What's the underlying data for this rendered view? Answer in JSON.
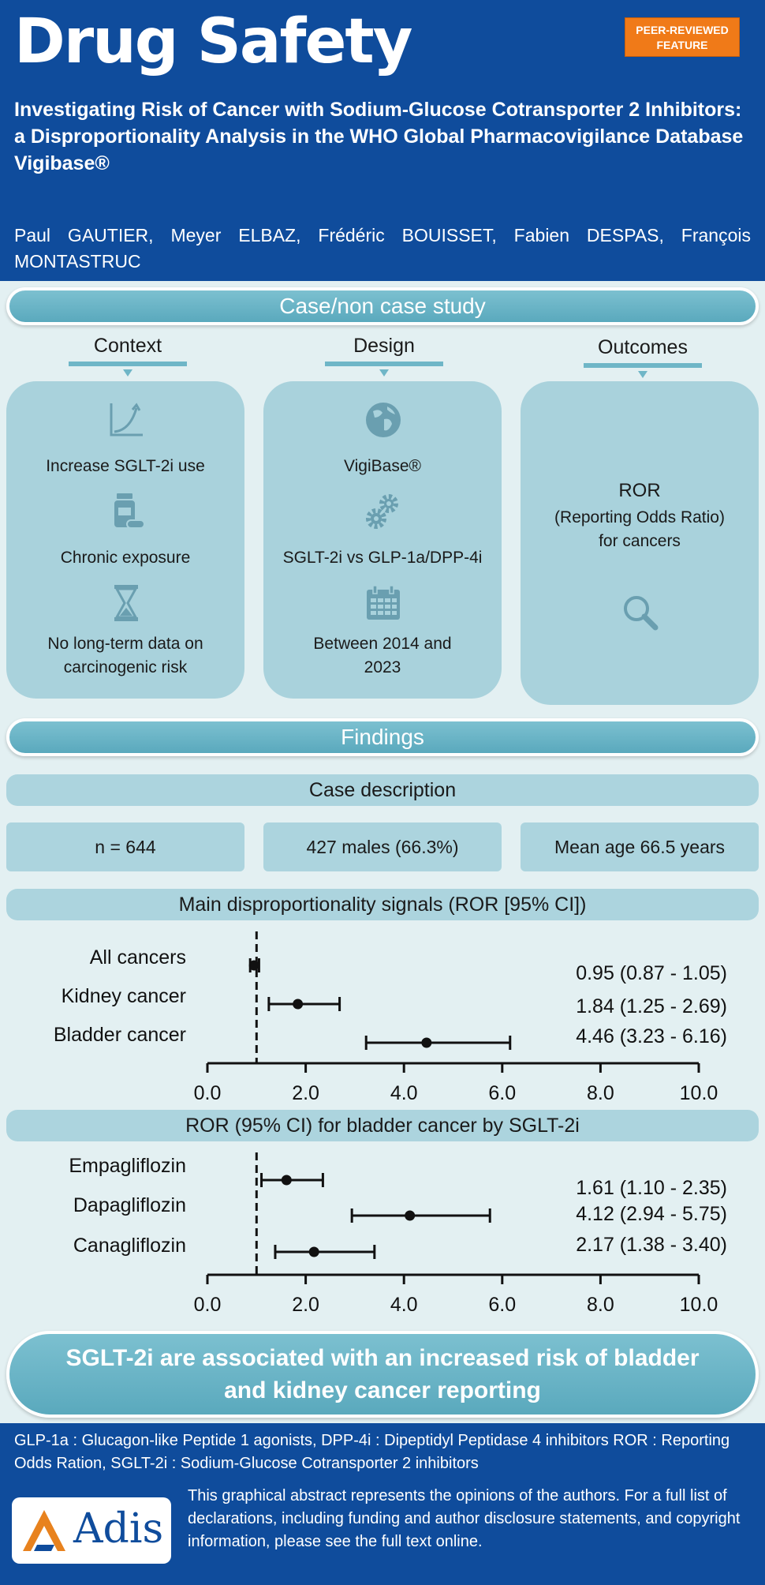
{
  "header": {
    "journal": "Drug Safety",
    "badge_line1": "PEER-REVIEWED",
    "badge_line2": "FEATURE",
    "title": "Investigating Risk of Cancer with Sodium-Glucose Cotransporter 2 Inhibitors: a Disproportionality Analysis in the WHO Global Pharmacovigilance Database Vigibase®",
    "authors": "Paul GAUTIER, Meyer ELBAZ, Frédéric BOUISSET, Fabien DESPAS, François MONTASTRUC"
  },
  "study": {
    "banner": "Case/non case study",
    "columns": [
      {
        "heading": "Context",
        "items": [
          "Increase SGLT-2i use",
          "Chronic exposure",
          "No long-term data on carcinogenic risk"
        ],
        "icons": [
          "chart-curve-icon",
          "pill-bottle-icon",
          "hourglass-icon"
        ]
      },
      {
        "heading": "Design",
        "items": [
          "VigiBase®",
          "SGLT-2i vs GLP-1a/DPP-4i",
          "Between 2014 and 2023"
        ],
        "icons": [
          "globe-icon",
          "gears-icon",
          "calendar-icon"
        ]
      },
      {
        "heading": "Outcomes",
        "items": [
          "ROR",
          "(Reporting Odds Ratio)",
          "for cancers"
        ],
        "icons": [
          "magnifier-icon"
        ]
      }
    ]
  },
  "findings": {
    "banner": "Findings",
    "case_description": "Case description",
    "stats": [
      "n = 644",
      "427 males (66.3%)",
      "Mean age 66.5 years"
    ],
    "signals_title": "Main disproportionality signals (ROR [95% CI])",
    "bladder_title": "ROR (95% CI) for bladder cancer by SGLT-2i"
  },
  "chart_data": [
    {
      "type": "forest",
      "title": "Main disproportionality signals (ROR [95% CI])",
      "reference_line": 1.0,
      "xlim": [
        0,
        10
      ],
      "xticks": [
        "0.0",
        "2.0",
        "4.0",
        "6.0",
        "8.0",
        "10.0"
      ],
      "categories": [
        "All cancers",
        "Kidney cancer",
        "Bladder cancer"
      ],
      "estimate": [
        0.95,
        1.84,
        4.46
      ],
      "lower": [
        0.87,
        1.25,
        3.23
      ],
      "upper": [
        1.05,
        2.69,
        6.16
      ],
      "labels": [
        "0.95 (0.87 - 1.05)",
        "1.84 (1.25 - 2.69)",
        "4.46 (3.23 - 6.16)"
      ]
    },
    {
      "type": "forest",
      "title": "ROR (95% CI) for bladder cancer by SGLT-2i",
      "reference_line": 1.0,
      "xlim": [
        0,
        10
      ],
      "xticks": [
        "0.0",
        "2.0",
        "4.0",
        "6.0",
        "8.0",
        "10.0"
      ],
      "categories": [
        "Empagliflozin",
        "Dapagliflozin",
        "Canagliflozin"
      ],
      "estimate": [
        1.61,
        4.12,
        2.17
      ],
      "lower": [
        1.1,
        2.94,
        1.38
      ],
      "upper": [
        2.35,
        5.75,
        3.4
      ],
      "labels": [
        "1.61 (1.10 - 2.35)",
        "4.12 (2.94 - 5.75)",
        "2.17 (1.38 - 3.40)"
      ]
    }
  ],
  "conclusion": "SGLT-2i are associated with an increased risk of bladder and kidney cancer reporting",
  "footer": {
    "abbreviations": "GLP-1a : Glucagon-like Peptide 1 agonists, DPP-4i : Dipeptidyl Peptidase 4 inhibitors ROR : Reporting Odds Ration, SGLT-2i : Sodium-Glucose Cotransporter 2 inhibitors",
    "publisher": "Adis",
    "disclaimer": "This graphical abstract represents the opinions of the authors. For a full list of declarations, including funding and author disclosure statements, and copyright information,  please see the full text online."
  },
  "colors": {
    "header_blue": "#0f4c9c",
    "badge_orange": "#f07a18",
    "teal": "#6fb6c7",
    "card": "#a9d2dc"
  }
}
